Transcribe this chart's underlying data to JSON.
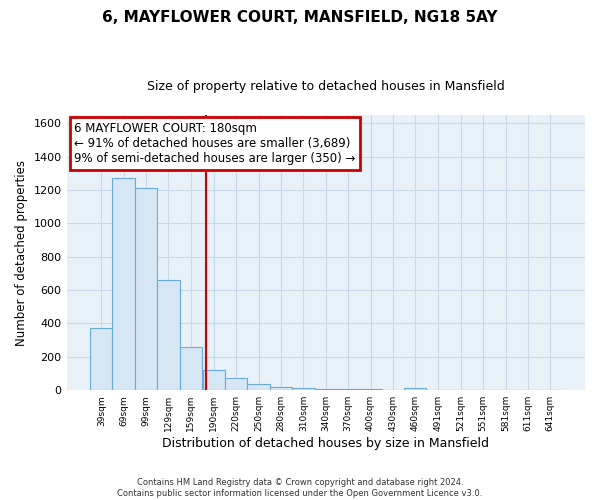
{
  "title": "6, MAYFLOWER COURT, MANSFIELD, NG18 5AY",
  "subtitle": "Size of property relative to detached houses in Mansfield",
  "xlabel": "Distribution of detached houses by size in Mansfield",
  "ylabel": "Number of detached properties",
  "footer_line1": "Contains HM Land Registry data © Crown copyright and database right 2024.",
  "footer_line2": "Contains public sector information licensed under the Open Government Licence v3.0.",
  "bar_edges": [
    39,
    69,
    99,
    129,
    159,
    190,
    220,
    250,
    280,
    310,
    340,
    370,
    400,
    430,
    460,
    491,
    521,
    551,
    581,
    611,
    641
  ],
  "bar_heights": [
    370,
    1270,
    1215,
    660,
    260,
    120,
    75,
    35,
    20,
    15,
    10,
    10,
    10,
    0,
    15,
    0,
    0,
    0,
    0,
    0,
    0
  ],
  "bar_color": "#d6e6f4",
  "bar_edgecolor": "#6aabd6",
  "grid_color": "#c8d8e8",
  "bg_color": "#e8f0f8",
  "red_line_x": 180,
  "annotation_title": "6 MAYFLOWER COURT: 180sqm",
  "annotation_line1": "← 91% of detached houses are smaller (3,689)",
  "annotation_line2": "9% of semi-detached houses are larger (350) →",
  "annotation_box_color": "#ffffff",
  "annotation_box_edgecolor": "#cc0000",
  "ylim": [
    0,
    1650
  ],
  "yticks": [
    0,
    200,
    400,
    600,
    800,
    1000,
    1200,
    1400,
    1600
  ]
}
